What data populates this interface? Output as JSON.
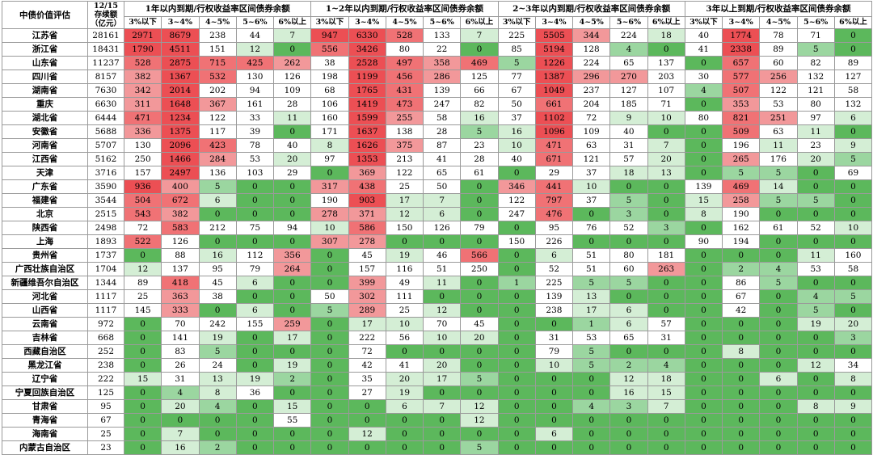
{
  "header": {
    "corner_label": "中债价值评估",
    "stock_label_line1": "12/15",
    "stock_label_line2": "存续额",
    "stock_label_line3": "（亿元）",
    "groups": [
      "1年以内到期/行权收益率区间债券余额",
      "1~2年以内到期/行权收益率区间债券余额",
      "2~3年以内到期/行权收益率区间债券余额",
      "3年以上到期/行权收益率区间债券余额"
    ],
    "sub_labels": [
      "3%以下",
      "3~4%",
      "4~5%",
      "5~6%",
      "6%以上"
    ]
  },
  "colors": {
    "green_1": "#5cb85c",
    "green_2": "#9bd6a0",
    "green_3": "#d4eed5",
    "red_1": "#f2989a",
    "red_2": "#f07275",
    "red_3": "#ec4f54"
  },
  "rows": [
    {
      "name": "江苏省",
      "stock": "28161",
      "vals": [
        2971,
        8679,
        238,
        44,
        7,
        947,
        6330,
        528,
        133,
        7,
        225,
        5505,
        344,
        224,
        18,
        40,
        1774,
        78,
        71,
        0
      ]
    },
    {
      "name": "浙江省",
      "stock": "18431",
      "vals": [
        1790,
        4511,
        151,
        12,
        0,
        556,
        3426,
        80,
        22,
        0,
        85,
        5194,
        128,
        4,
        0,
        41,
        2338,
        89,
        5,
        0
      ]
    },
    {
      "name": "山东省",
      "stock": "11237",
      "vals": [
        528,
        2875,
        715,
        425,
        262,
        38,
        2528,
        497,
        358,
        469,
        5,
        1226,
        224,
        65,
        137,
        0,
        657,
        60,
        82,
        89
      ]
    },
    {
      "name": "四川省",
      "stock": "8157",
      "vals": [
        382,
        1367,
        532,
        130,
        126,
        198,
        1199,
        456,
        286,
        125,
        77,
        1387,
        296,
        270,
        203,
        30,
        577,
        256,
        132,
        127
      ]
    },
    {
      "name": "湖南省",
      "stock": "7630",
      "vals": [
        342,
        2014,
        202,
        94,
        109,
        68,
        1765,
        431,
        139,
        66,
        67,
        1049,
        237,
        127,
        107,
        4,
        507,
        122,
        121,
        58
      ]
    },
    {
      "name": "重庆",
      "stock": "6630",
      "vals": [
        311,
        1648,
        367,
        161,
        28,
        106,
        1419,
        473,
        247,
        82,
        50,
        661,
        204,
        185,
        71,
        0,
        353,
        53,
        80,
        132
      ]
    },
    {
      "name": "湖北省",
      "stock": "6444",
      "vals": [
        471,
        1234,
        122,
        33,
        11,
        160,
        1599,
        255,
        58,
        16,
        37,
        1102,
        72,
        9,
        10,
        80,
        821,
        251,
        97,
        6
      ]
    },
    {
      "name": "安徽省",
      "stock": "5688",
      "vals": [
        336,
        1375,
        117,
        39,
        0,
        171,
        1637,
        138,
        28,
        5,
        16,
        1096,
        109,
        40,
        0,
        0,
        509,
        63,
        11,
        0
      ]
    },
    {
      "name": "河南省",
      "stock": "5707",
      "vals": [
        130,
        2096,
        423,
        78,
        40,
        8,
        1626,
        375,
        87,
        23,
        10,
        471,
        63,
        31,
        7,
        0,
        196,
        11,
        23,
        9
      ]
    },
    {
      "name": "江西省",
      "stock": "5162",
      "stock2": "",
      "vals": [
        250,
        1466,
        284,
        53,
        20,
        97,
        1353,
        213,
        41,
        28,
        40,
        671,
        121,
        57,
        20,
        0,
        265,
        176,
        20,
        5
      ]
    },
    {
      "name": "天津",
      "stock": "3716",
      "vals": [
        157,
        2497,
        136,
        103,
        29,
        0,
        369,
        122,
        65,
        61,
        0,
        29,
        37,
        18,
        13,
        0,
        5,
        5,
        0,
        69
      ]
    },
    {
      "name": "广东省",
      "stock": "3590",
      "vals": [
        936,
        400,
        5,
        0,
        0,
        317,
        438,
        25,
        50,
        0,
        346,
        441,
        10,
        0,
        0,
        139,
        469,
        14,
        0,
        0
      ]
    },
    {
      "name": "福建省",
      "stock": "3544",
      "vals": [
        504,
        672,
        6,
        0,
        0,
        190,
        903,
        17,
        7,
        0,
        122,
        797,
        37,
        5,
        0,
        15,
        258,
        5,
        5,
        0
      ]
    },
    {
      "name": "北京",
      "stock": "2515",
      "vals": [
        543,
        382,
        0,
        0,
        0,
        278,
        371,
        12,
        6,
        0,
        247,
        476,
        0,
        3,
        0,
        8,
        190,
        0,
        0,
        0
      ]
    },
    {
      "name": "陕西省",
      "stock": "2498",
      "vals": [
        72,
        583,
        212,
        75,
        94,
        10,
        586,
        150,
        126,
        79,
        0,
        95,
        76,
        52,
        3,
        0,
        162,
        61,
        52,
        10
      ]
    },
    {
      "name": "上海",
      "stock": "1893",
      "vals": [
        522,
        126,
        0,
        0,
        0,
        307,
        278,
        0,
        0,
        0,
        150,
        226,
        0,
        0,
        0,
        90,
        194,
        0,
        0,
        0
      ]
    },
    {
      "name": "贵州省",
      "stock": "1737",
      "vals": [
        0,
        88,
        16,
        112,
        356,
        0,
        45,
        19,
        46,
        566,
        0,
        6,
        51,
        80,
        181,
        0,
        0,
        0,
        11,
        160
      ]
    },
    {
      "name": "广西壮族自治区",
      "stock": "1704",
      "vals": [
        12,
        137,
        95,
        79,
        264,
        0,
        157,
        116,
        51,
        250,
        0,
        52,
        51,
        60,
        263,
        0,
        2,
        4,
        53,
        58
      ]
    },
    {
      "name": "新疆维吾尔自治区",
      "stock": "1344",
      "vals": [
        89,
        418,
        45,
        6,
        0,
        0,
        399,
        49,
        11,
        0,
        1,
        225,
        5,
        5,
        0,
        0,
        86,
        5,
        0,
        0
      ]
    },
    {
      "name": "河北省",
      "stock": "1117",
      "vals": [
        25,
        363,
        38,
        0,
        0,
        50,
        302,
        111,
        0,
        0,
        0,
        139,
        13,
        0,
        0,
        0,
        67,
        0,
        4,
        5
      ]
    },
    {
      "name": "山西省",
      "stock": "1117",
      "vals": [
        145,
        333,
        0,
        6,
        0,
        5,
        289,
        25,
        12,
        0,
        0,
        238,
        17,
        6,
        0,
        0,
        42,
        0,
        5,
        0
      ]
    },
    {
      "name": "云南省",
      "stock": "972",
      "vals": [
        0,
        70,
        242,
        155,
        259,
        0,
        17,
        10,
        70,
        45,
        0,
        0,
        1,
        6,
        57,
        0,
        0,
        0,
        19,
        20
      ]
    },
    {
      "name": "吉林省",
      "stock": "668",
      "vals": [
        0,
        141,
        19,
        0,
        17,
        0,
        222,
        56,
        10,
        20,
        0,
        31,
        53,
        65,
        31,
        0,
        0,
        0,
        0,
        3
      ]
    },
    {
      "name": "西藏自治区",
      "stock": "252",
      "vals": [
        0,
        83,
        5,
        0,
        0,
        0,
        72,
        0,
        0,
        0,
        0,
        79,
        5,
        0,
        0,
        0,
        8,
        0,
        0,
        0
      ]
    },
    {
      "name": "黑龙江省",
      "stock": "238",
      "vals": [
        0,
        26,
        24,
        0,
        19,
        0,
        42,
        41,
        20,
        0,
        0,
        10,
        5,
        2,
        4,
        0,
        0,
        0,
        12,
        34
      ]
    },
    {
      "name": "辽宁省",
      "stock": "222",
      "vals": [
        15,
        31,
        13,
        19,
        2,
        0,
        35,
        20,
        17,
        5,
        0,
        0,
        0,
        12,
        18,
        0,
        0,
        6,
        0,
        8
      ]
    },
    {
      "name": "宁夏回族自治区",
      "stock": "125",
      "vals": [
        0,
        4,
        8,
        36,
        0,
        0,
        27,
        19,
        0,
        0,
        0,
        0,
        0,
        16,
        15,
        0,
        0,
        0,
        0,
        0
      ]
    },
    {
      "name": "甘肃省",
      "stock": "95",
      "vals": [
        0,
        20,
        4,
        0,
        15,
        0,
        0,
        6,
        7,
        12,
        0,
        0,
        4,
        3,
        7,
        0,
        0,
        0,
        8,
        9
      ]
    },
    {
      "name": "青海省",
      "stock": "67",
      "vals": [
        0,
        0,
        0,
        0,
        55,
        0,
        0,
        0,
        0,
        12,
        0,
        0,
        0,
        0,
        0,
        0,
        0,
        0,
        0,
        0
      ]
    },
    {
      "name": "海南省",
      "stock": "25",
      "vals": [
        0,
        7,
        0,
        0,
        0,
        0,
        12,
        0,
        0,
        0,
        0,
        6,
        0,
        0,
        0,
        0,
        0,
        0,
        0,
        0
      ]
    },
    {
      "name": "内蒙古自治区",
      "stock": "23",
      "vals": [
        0,
        16,
        2,
        0,
        0,
        0,
        0,
        0,
        0,
        5,
        0,
        0,
        0,
        0,
        0,
        0,
        0,
        0,
        0,
        0
      ]
    }
  ]
}
